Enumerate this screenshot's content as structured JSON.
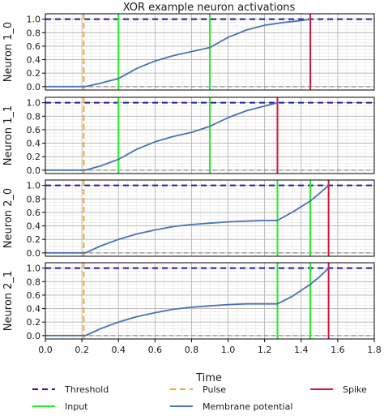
{
  "chart_data": {
    "type": "line",
    "title": "XOR example neuron activations",
    "xlabel": "Time",
    "xlim": [
      0.0,
      1.8
    ],
    "ylim": [
      -0.05,
      1.08
    ],
    "x_ticks": [
      "0.0",
      "0.2",
      "0.4",
      "0.6",
      "0.8",
      "1.0",
      "1.2",
      "1.4",
      "1.6",
      "1.8"
    ],
    "y_ticks": [
      "0.0",
      "0.2",
      "0.4",
      "0.6",
      "0.8",
      "1.0"
    ],
    "grid": true,
    "threshold": 1.0,
    "legend": {
      "placement": "bottom",
      "entries": [
        {
          "label": "Threshold",
          "color": "#1f1f9e",
          "style": "dashed"
        },
        {
          "label": "Pulse",
          "color": "#ffa522",
          "style": "dashed"
        },
        {
          "label": "Spike",
          "color": "#d6173c",
          "style": "solid"
        },
        {
          "label": "Input",
          "color": "#22ee22",
          "style": "solid"
        },
        {
          "label": "Membrane potential",
          "color": "#4a72b0",
          "style": "solid"
        }
      ]
    },
    "panels": [
      {
        "ylabel": "Neuron 1_0",
        "pulse": 0.21,
        "inputs": [
          0.4,
          0.9
        ],
        "spike": 1.45,
        "membrane": [
          [
            0.0,
            0.0
          ],
          [
            0.22,
            0.0
          ],
          [
            0.3,
            0.05
          ],
          [
            0.4,
            0.12
          ],
          [
            0.5,
            0.27
          ],
          [
            0.6,
            0.38
          ],
          [
            0.7,
            0.46
          ],
          [
            0.8,
            0.52
          ],
          [
            0.9,
            0.58
          ],
          [
            1.0,
            0.73
          ],
          [
            1.1,
            0.84
          ],
          [
            1.2,
            0.91
          ],
          [
            1.3,
            0.95
          ],
          [
            1.4,
            0.98
          ],
          [
            1.45,
            1.0
          ]
        ]
      },
      {
        "ylabel": "Neuron 1_1",
        "pulse": 0.21,
        "inputs": [
          0.4,
          0.9
        ],
        "spike": 1.27,
        "membrane": [
          [
            0.0,
            0.0
          ],
          [
            0.22,
            0.0
          ],
          [
            0.3,
            0.06
          ],
          [
            0.4,
            0.16
          ],
          [
            0.5,
            0.31
          ],
          [
            0.6,
            0.42
          ],
          [
            0.7,
            0.5
          ],
          [
            0.8,
            0.56
          ],
          [
            0.9,
            0.65
          ],
          [
            1.0,
            0.78
          ],
          [
            1.1,
            0.88
          ],
          [
            1.2,
            0.95
          ],
          [
            1.27,
            1.0
          ]
        ]
      },
      {
        "ylabel": "Neuron 2_0",
        "pulse": 0.21,
        "inputs": [
          1.27,
          1.45
        ],
        "spike": 1.55,
        "membrane": [
          [
            0.0,
            0.0
          ],
          [
            0.22,
            0.0
          ],
          [
            0.3,
            0.1
          ],
          [
            0.4,
            0.2
          ],
          [
            0.5,
            0.28
          ],
          [
            0.6,
            0.34
          ],
          [
            0.7,
            0.39
          ],
          [
            0.8,
            0.42
          ],
          [
            0.9,
            0.44
          ],
          [
            1.0,
            0.46
          ],
          [
            1.1,
            0.47
          ],
          [
            1.2,
            0.48
          ],
          [
            1.27,
            0.48
          ],
          [
            1.35,
            0.6
          ],
          [
            1.45,
            0.77
          ],
          [
            1.5,
            0.88
          ],
          [
            1.55,
            1.0
          ]
        ]
      },
      {
        "ylabel": "Neuron 2_1",
        "pulse": 0.21,
        "inputs": [
          1.27,
          1.45
        ],
        "spike": 1.55,
        "membrane": [
          [
            0.0,
            0.0
          ],
          [
            0.22,
            0.0
          ],
          [
            0.3,
            0.1
          ],
          [
            0.4,
            0.2
          ],
          [
            0.5,
            0.28
          ],
          [
            0.6,
            0.34
          ],
          [
            0.7,
            0.39
          ],
          [
            0.8,
            0.42
          ],
          [
            0.9,
            0.44
          ],
          [
            1.0,
            0.46
          ],
          [
            1.1,
            0.47
          ],
          [
            1.2,
            0.47
          ],
          [
            1.27,
            0.47
          ],
          [
            1.35,
            0.58
          ],
          [
            1.45,
            0.76
          ],
          [
            1.5,
            0.87
          ],
          [
            1.55,
            1.0
          ]
        ]
      }
    ]
  }
}
